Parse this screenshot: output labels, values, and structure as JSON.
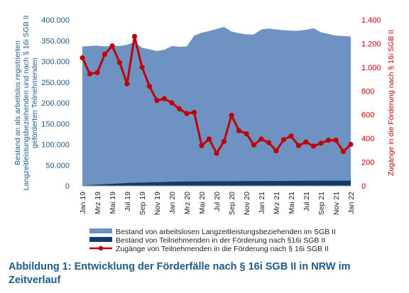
{
  "chart_data": {
    "type": "area",
    "x": [
      "Jan 19",
      "Feb 19",
      "Mrz 19",
      "Apr 19",
      "Mai 19",
      "Jun 19",
      "Jul 19",
      "Aug 19",
      "Sep 19",
      "Okt 19",
      "Nov 19",
      "Dez 19",
      "Jan 20",
      "Feb 20",
      "Mrz 20",
      "Apr 20",
      "Mai 20",
      "Jun 20",
      "Jul 20",
      "Aug 20",
      "Sep 20",
      "Okt 20",
      "Nov 20",
      "Dez 20",
      "Jan 21",
      "Feb 21",
      "Mrz 21",
      "Apr 21",
      "Mai 21",
      "Jun 21",
      "Jul 21",
      "Aug 21",
      "Sep 21",
      "Okt 21",
      "Nov 21",
      "Dez 21",
      "Jan 22"
    ],
    "x_tick_labels": [
      "Jan 19",
      "Mrz 19",
      "Mai 19",
      "Jul 19",
      "Sep 19",
      "Nov 19",
      "Jan 20",
      "Mrz 20",
      "Mai 20",
      "Jul 20",
      "Sep 20",
      "Nov 20",
      "Jan 21",
      "Mrz 21",
      "Mai 21",
      "Jul 21",
      "Sep 21",
      "Nov 21",
      "Jan 22"
    ],
    "series": [
      {
        "name": "Bestand von arbeitslosen Langzeitleistungsbeziehenden im SGB II",
        "type": "area",
        "axis": "left",
        "color": "#6e93c2",
        "values": [
          336000,
          337000,
          338000,
          336000,
          338000,
          337000,
          340000,
          347000,
          333000,
          329000,
          325000,
          328000,
          337000,
          335000,
          336000,
          362000,
          369000,
          373000,
          378000,
          383000,
          372000,
          368000,
          365000,
          365000,
          377000,
          379000,
          377000,
          375000,
          374000,
          374000,
          376000,
          380000,
          370000,
          366000,
          362000,
          361000,
          360000
        ]
      },
      {
        "name": "Bestand von Teilnehmenden in der Förderung nach §16i SGB II",
        "type": "area",
        "axis": "left",
        "color": "#0f3c6e",
        "values": [
          1000,
          2000,
          3000,
          4000,
          5000,
          6000,
          7000,
          7500,
          8000,
          8500,
          9000,
          9500,
          10000,
          10300,
          10500,
          10700,
          10900,
          11000,
          11100,
          11200,
          11300,
          11400,
          11500,
          11600,
          11700,
          11800,
          11900,
          12000,
          12100,
          12200,
          12300,
          12400,
          12500,
          12600,
          12700,
          12700,
          12700
        ]
      },
      {
        "name": "Zugänge von Teilnehmenden in die Förderung nach § 16i SGB II",
        "type": "line",
        "axis": "right",
        "color": "#c00000",
        "values": [
          1080,
          945,
          955,
          1110,
          1180,
          1040,
          860,
          1260,
          1000,
          840,
          720,
          735,
          700,
          650,
          610,
          620,
          340,
          395,
          275,
          375,
          595,
          465,
          440,
          345,
          395,
          365,
          295,
          390,
          420,
          340,
          370,
          335,
          360,
          385,
          385,
          290,
          350
        ]
      }
    ],
    "left_axis": {
      "title": "Bestand an als arbeitslos registrierten Langzeitleistungsbeziehenden und nach § 16i SGB II geförderten Teilnehmenden",
      "title_lines": [
        "Bestand an als arbeitslos registrierten",
        "Langzeitleistungsbeziehenden und nach § 16i SGB II",
        "geförderten Teilnehmenden"
      ],
      "ylim": [
        0,
        400000
      ],
      "ticks": [
        0,
        50000,
        100000,
        150000,
        200000,
        250000,
        300000,
        350000,
        400000
      ],
      "tick_labels": [
        "0",
        "50.000",
        "100.000",
        "150.000",
        "200.000",
        "250.000",
        "300.000",
        "350.000",
        "400.000"
      ]
    },
    "right_axis": {
      "title": "Zugänge in die Förderung nach § 16i SGB II",
      "ylim": [
        0,
        1400
      ],
      "ticks": [
        0,
        200,
        400,
        600,
        800,
        1000,
        1200,
        1400
      ],
      "tick_labels": [
        "0",
        "200",
        "400",
        "600",
        "800",
        "1.000",
        "1.200",
        "1.400"
      ]
    },
    "grid": false,
    "legend_position": "bottom"
  },
  "caption": "Abbildung 1: Entwicklung der Förderfälle nach § 16i SGB II in NRW im Zeitverlauf"
}
